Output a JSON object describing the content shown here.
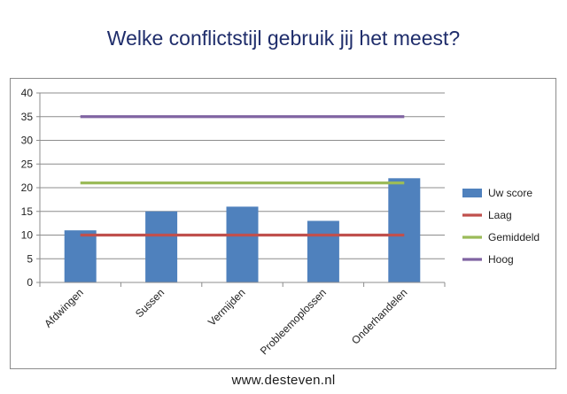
{
  "page": {
    "title": "Welke conflictstijl gebruik jij het meest?",
    "footer": "www.desteven.nl"
  },
  "chart_data": {
    "type": "bar",
    "categories": [
      "Afdwingen",
      "Sussen",
      "Vermijden",
      "Probleemoplossen",
      "Onderhandelen"
    ],
    "series": [
      {
        "name": "Uw score",
        "kind": "bar",
        "color": "#4f81bd",
        "values": [
          11,
          15,
          16,
          13,
          22
        ]
      },
      {
        "name": "Laag",
        "kind": "line",
        "color": "#c0504d",
        "values": [
          10,
          10,
          10,
          10,
          10
        ]
      },
      {
        "name": "Gemiddeld",
        "kind": "line",
        "color": "#9bbb59",
        "values": [
          21,
          21,
          21,
          21,
          21
        ]
      },
      {
        "name": "Hoog",
        "kind": "line",
        "color": "#8064a2",
        "values": [
          35,
          35,
          35,
          35,
          35
        ]
      }
    ],
    "ylim": [
      0,
      40
    ],
    "yticks": [
      "0",
      "5",
      "10",
      "15",
      "20",
      "25",
      "30",
      "35",
      "40"
    ],
    "grid": true,
    "legend": "right"
  }
}
